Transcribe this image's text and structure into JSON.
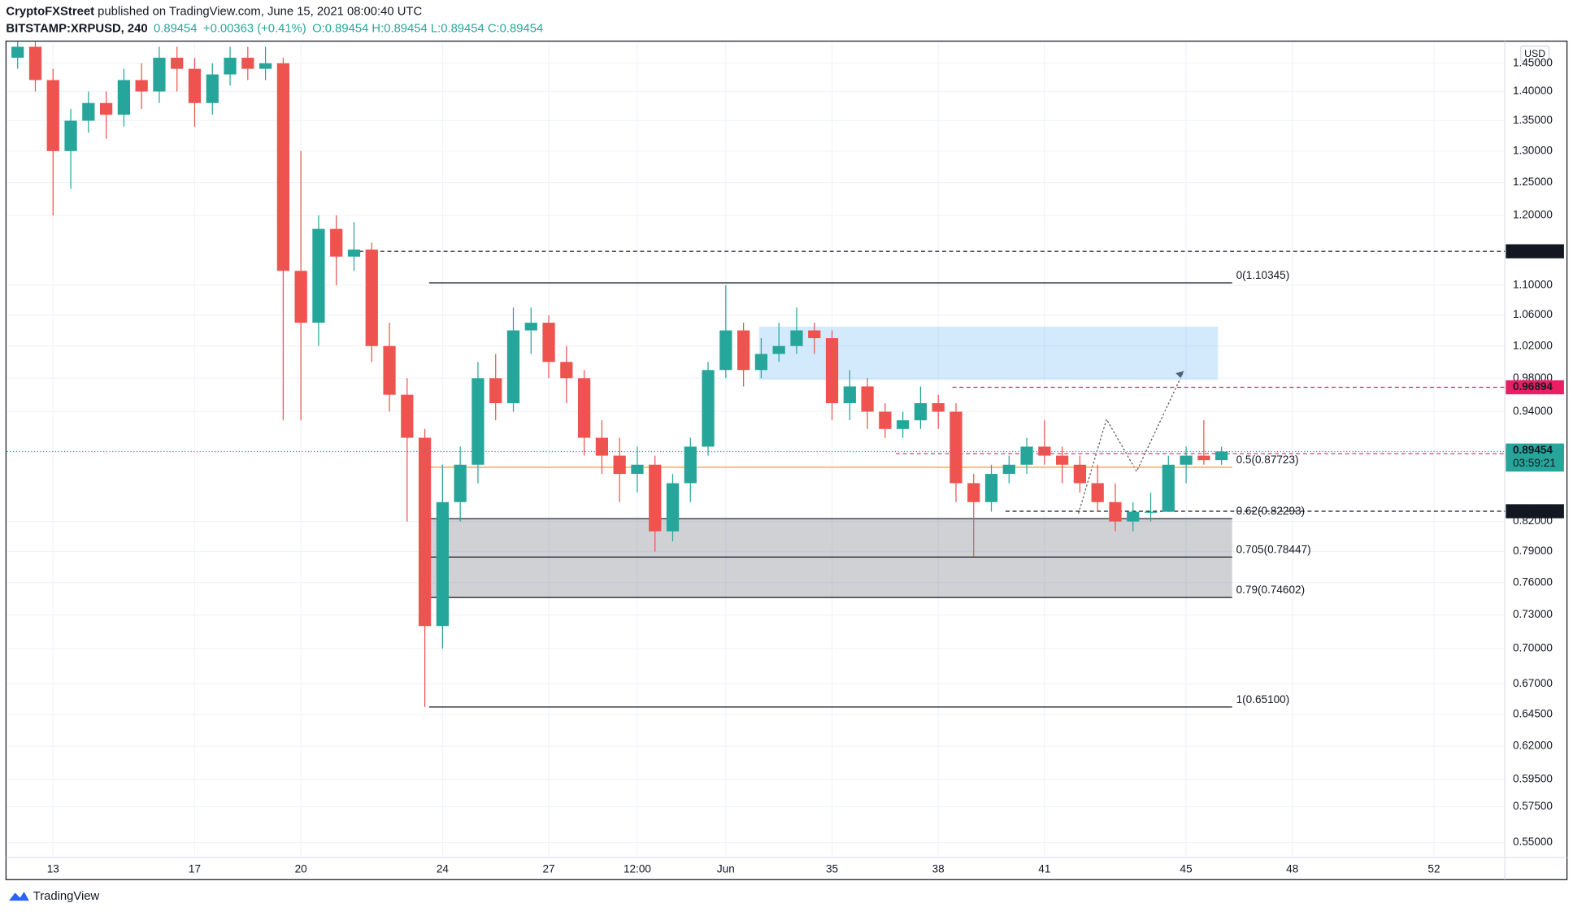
{
  "header": {
    "author": "CryptoFXStreet",
    "published": "published on TradingView.com, June 15, 2021 08:00:40 UTC",
    "symbol": "BITSTAMP:XRPUSD, 240",
    "last": "0.89454",
    "change": "+0.00363 (+0.41%)",
    "ohlc": "O:0.89454 H:0.89454 L:0.89454 C:0.89454",
    "currency": "USD",
    "brand": "TradingView"
  },
  "chart_data": {
    "type": "candlestick",
    "log_scale": true,
    "up_color": "#26a69a",
    "down_color": "#ef5350",
    "x": [
      12,
      12.5,
      13,
      13.5,
      14,
      14.5,
      15,
      15.5,
      16,
      16.5,
      17,
      17.5,
      18,
      18.5,
      19,
      19.5,
      20,
      20.5,
      21,
      21.5,
      22,
      22.5,
      23,
      23.5,
      24,
      24.5,
      25,
      25.5,
      26,
      26.5,
      27,
      27.5,
      28,
      28.5,
      29,
      29.5,
      30,
      30.5,
      31,
      31.5,
      32,
      32.5,
      33,
      33.5,
      34,
      34.5,
      35,
      35.5,
      36,
      36.5,
      37,
      37.5,
      38,
      38.5,
      39,
      39.5,
      40,
      40.5,
      41,
      41.5,
      42,
      42.5,
      43,
      43.5,
      44,
      44.5,
      45,
      45.5,
      46
    ],
    "open": [
      1.46,
      1.48,
      1.42,
      1.3,
      1.35,
      1.38,
      1.36,
      1.42,
      1.4,
      1.46,
      1.44,
      1.38,
      1.43,
      1.46,
      1.44,
      1.45,
      1.12,
      1.05,
      1.18,
      1.14,
      1.15,
      1.02,
      0.96,
      0.91,
      0.72,
      0.84,
      0.88,
      0.98,
      0.95,
      1.04,
      1.05,
      1.0,
      0.98,
      0.91,
      0.89,
      0.87,
      0.88,
      0.81,
      0.86,
      0.9,
      0.99,
      1.04,
      0.99,
      1.01,
      1.02,
      1.04,
      1.03,
      0.95,
      0.97,
      0.94,
      0.92,
      0.93,
      0.95,
      0.94,
      0.86,
      0.84,
      0.87,
      0.88,
      0.9,
      0.89,
      0.88,
      0.86,
      0.84,
      0.82,
      0.83,
      0.83,
      0.88,
      0.89,
      0.885
    ],
    "high": [
      1.49,
      1.49,
      1.44,
      1.37,
      1.4,
      1.4,
      1.44,
      1.45,
      1.48,
      1.48,
      1.46,
      1.45,
      1.48,
      1.48,
      1.48,
      1.46,
      1.3,
      1.2,
      1.2,
      1.19,
      1.16,
      1.05,
      0.98,
      0.92,
      0.88,
      0.9,
      1.0,
      1.01,
      1.07,
      1.07,
      1.06,
      1.02,
      0.99,
      0.93,
      0.91,
      0.9,
      0.89,
      0.87,
      0.91,
      1.0,
      1.1,
      1.05,
      1.03,
      1.05,
      1.07,
      1.05,
      1.04,
      0.99,
      0.98,
      0.95,
      0.94,
      0.97,
      0.96,
      0.95,
      0.87,
      0.88,
      0.89,
      0.91,
      0.93,
      0.9,
      0.89,
      0.88,
      0.86,
      0.84,
      0.85,
      0.89,
      0.9,
      0.93,
      0.9
    ],
    "low": [
      1.44,
      1.4,
      1.2,
      1.24,
      1.33,
      1.32,
      1.34,
      1.37,
      1.38,
      1.4,
      1.34,
      1.36,
      1.41,
      1.42,
      1.42,
      0.93,
      0.93,
      1.02,
      1.1,
      1.12,
      1.0,
      0.94,
      0.82,
      0.651,
      0.7,
      0.82,
      0.86,
      0.93,
      0.94,
      1.01,
      0.98,
      0.95,
      0.89,
      0.87,
      0.84,
      0.85,
      0.79,
      0.8,
      0.84,
      0.89,
      0.98,
      0.97,
      0.98,
      1.0,
      1.01,
      1.01,
      0.93,
      0.93,
      0.92,
      0.91,
      0.91,
      0.92,
      0.92,
      0.84,
      0.785,
      0.83,
      0.86,
      0.87,
      0.88,
      0.86,
      0.85,
      0.83,
      0.81,
      0.81,
      0.82,
      0.83,
      0.86,
      0.88,
      0.88
    ],
    "close": [
      1.48,
      1.42,
      1.3,
      1.35,
      1.38,
      1.36,
      1.42,
      1.4,
      1.46,
      1.44,
      1.38,
      1.43,
      1.46,
      1.44,
      1.45,
      1.12,
      1.05,
      1.18,
      1.14,
      1.15,
      1.02,
      0.96,
      0.91,
      0.72,
      0.84,
      0.88,
      0.98,
      0.95,
      1.04,
      1.05,
      1.0,
      0.98,
      0.91,
      0.89,
      0.87,
      0.88,
      0.81,
      0.86,
      0.9,
      0.99,
      1.04,
      0.99,
      1.01,
      1.02,
      1.04,
      1.03,
      0.95,
      0.97,
      0.94,
      0.92,
      0.93,
      0.95,
      0.94,
      0.86,
      0.84,
      0.87,
      0.88,
      0.9,
      0.89,
      0.88,
      0.86,
      0.84,
      0.82,
      0.83,
      0.83,
      0.88,
      0.89,
      0.885,
      0.89454
    ],
    "xlim": [
      11.7,
      54.0
    ],
    "xticks": [
      13,
      17,
      20,
      24,
      27,
      {
        "value": 29.5,
        "label": "12:00"
      },
      {
        "value": 32,
        "label": "Jun"
      },
      35,
      38,
      41,
      45,
      48,
      52
    ],
    "ylim": [
      0.5398,
      1.4886
    ],
    "yticks": [
      {
        "value": 1.45,
        "label": "1.45000"
      },
      {
        "value": 1.4,
        "label": "1.40000"
      },
      {
        "value": 1.35,
        "label": "1.35000"
      },
      {
        "value": 1.3,
        "label": "1.30000"
      },
      {
        "value": 1.25,
        "label": "1.25000"
      },
      {
        "value": 1.2,
        "label": "1.20000"
      },
      {
        "value": 1.1,
        "label": "1.10000"
      },
      {
        "value": 1.06,
        "label": "1.06000"
      },
      {
        "value": 1.02,
        "label": "1.02000"
      },
      {
        "value": 0.98,
        "label": "0.98000"
      },
      {
        "value": 0.94,
        "label": "0.94000"
      },
      {
        "value": 0.82,
        "label": "0.82000"
      },
      {
        "value": 0.79,
        "label": "0.79000"
      },
      {
        "value": 0.76,
        "label": "0.76000"
      },
      {
        "value": 0.73,
        "label": "0.73000"
      },
      {
        "value": 0.7,
        "label": "0.70000"
      },
      {
        "value": 0.67,
        "label": "0.67000"
      },
      {
        "value": 0.645,
        "label": "0.64500"
      },
      {
        "value": 0.62,
        "label": "0.62000"
      },
      {
        "value": 0.595,
        "label": "0.59500"
      },
      {
        "value": 0.575,
        "label": "0.57500"
      },
      {
        "value": 0.55,
        "label": "0.55000"
      }
    ],
    "grid": true,
    "zones": [
      {
        "from": 32.94,
        "to": 45.9,
        "top": 1.045,
        "bottom": 0.978,
        "color": "rgba(33,150,243,0.2)"
      },
      {
        "from": 23.62,
        "to": 46.3,
        "top": 0.82293,
        "bottom": 0.78447,
        "color": "rgba(120,123,134,0.35)"
      },
      {
        "from": 23.62,
        "to": 46.3,
        "top": 0.78447,
        "bottom": 0.74602,
        "color": "rgba(120,123,134,0.35)"
      }
    ],
    "fib": {
      "from": 23.62,
      "to": 46.3,
      "levels": [
        {
          "price": 1.10345,
          "label": "0(1.10345)",
          "color": "#131722"
        },
        {
          "price": 0.87723,
          "label": "0.5(0.87723)",
          "color": "#f59b1c"
        },
        {
          "price": 0.82293,
          "label": "0.62(0.82293)",
          "color": "#131722"
        },
        {
          "price": 0.78447,
          "label": "0.705(0.78447)",
          "color": "#131722"
        },
        {
          "price": 0.74602,
          "label": "0.79(0.74602)",
          "color": "#131722"
        },
        {
          "price": 0.651,
          "label": "1(0.65100)",
          "color": "#131722"
        }
      ]
    },
    "price_lines": [
      {
        "value": 1.14756,
        "from": 21.45,
        "color": "#131722"
      },
      {
        "value": 0.96894,
        "from": 38.4,
        "color": "#e91e63"
      },
      {
        "value": 0.89215,
        "from": 36.8,
        "color": "#e91e63"
      },
      {
        "value": 0.83051,
        "from": 39.9,
        "color": "#131722"
      }
    ],
    "last_price": {
      "value": 0.89454,
      "countdown": "03:59:21",
      "color": "#26a69a"
    }
  }
}
